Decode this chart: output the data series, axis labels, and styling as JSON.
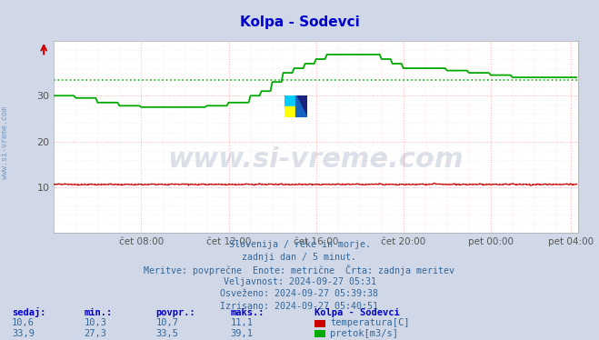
{
  "title": "Kolpa - Sodevci",
  "title_color": "#0000cc",
  "bg_color": "#d0d8e8",
  "plot_bg_color": "#ffffff",
  "grid_color_major": "#ffaaaa",
  "grid_color_minor": "#ffdddd",
  "xlabel_color": "#555555",
  "text_color": "#336699",
  "ylim": [
    0,
    42
  ],
  "yticks": [
    10,
    20,
    30
  ],
  "xlim": [
    0,
    288
  ],
  "xtick_labels": [
    "čet 08:00",
    "čet 12:00",
    "čet 16:00",
    "čet 20:00",
    "pet 00:00",
    "pet 04:00"
  ],
  "xtick_positions": [
    48,
    96,
    144,
    192,
    240,
    284
  ],
  "watermark": "www.si-vreme.com",
  "watermark_color": "#1a3a6e",
  "watermark_alpha": 0.15,
  "info_lines": [
    "Slovenija / reke in morje.",
    "zadnji dan / 5 minut.",
    "Meritve: povprečne  Enote: metrične  Črta: zadnja meritev",
    "Veljavnost: 2024-09-27 05:31",
    "Osveženo: 2024-09-27 05:39:38",
    "Izrisano: 2024-09-27 05:40:51"
  ],
  "table_headers": [
    "sedaj:",
    "min.:",
    "povpr.:",
    "maks.:"
  ],
  "table_row1": [
    "10,6",
    "10,3",
    "10,7",
    "11,1"
  ],
  "table_row2": [
    "33,9",
    "27,3",
    "33,5",
    "39,1"
  ],
  "legend_title": "Kolpa - Sodevci",
  "legend_item1": "temperatura[C]",
  "legend_item2": "pretok[m3/s]",
  "temp_color": "#cc0000",
  "flow_color": "#00aa00",
  "avg_temp": 10.7,
  "avg_flow": 33.5
}
